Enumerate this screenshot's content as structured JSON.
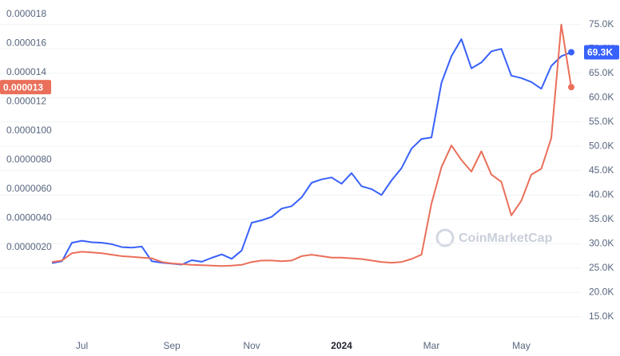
{
  "chart_data": {
    "type": "line",
    "watermark": "CoinMarketCap",
    "categories": [
      null,
      null,
      null,
      "Jul",
      null,
      null,
      null,
      null,
      null,
      null,
      null,
      null,
      "Sep",
      null,
      null,
      null,
      null,
      null,
      null,
      null,
      "Nov",
      null,
      null,
      null,
      null,
      null,
      null,
      null,
      null,
      "2024",
      null,
      null,
      null,
      null,
      null,
      null,
      null,
      null,
      "Mar",
      null,
      null,
      null,
      null,
      null,
      null,
      null,
      null,
      "May",
      null,
      null,
      null,
      null,
      null
    ],
    "series": [
      {
        "color": "#3861fb",
        "axis": "y2",
        "values": [
          26000,
          26400,
          30200,
          30600,
          30300,
          30200,
          29900,
          29300,
          29200,
          29400,
          26400,
          26100,
          25900,
          25700,
          26600,
          26300,
          27100,
          27800,
          26900,
          28600,
          34300,
          34800,
          35500,
          37200,
          37700,
          39500,
          42500,
          43200,
          43600,
          42300,
          44500,
          41800,
          41200,
          40000,
          43000,
          45500,
          49500,
          51500,
          51800,
          63000,
          68500,
          72000,
          66000,
          67200,
          69500,
          70000,
          64500,
          64000,
          63200,
          61800,
          66500,
          68500,
          69300
        ],
        "value_labels": [
          null,
          null,
          null,
          null,
          null,
          null,
          null,
          null,
          null,
          null,
          null,
          null,
          null,
          null,
          null,
          null,
          null,
          null,
          null,
          null,
          null,
          null,
          null,
          null,
          null,
          null,
          null,
          null,
          null,
          null,
          null,
          null,
          null,
          null,
          null,
          null,
          null,
          null,
          null,
          null,
          null,
          null,
          null,
          null,
          null,
          null,
          null,
          null,
          null,
          null,
          null,
          null,
          "69.3K"
        ]
      },
      {
        "color": "#ea6f5a",
        "axis": "y",
        "values": [
          1e-06,
          1.1e-06,
          1.6e-06,
          1.7e-06,
          1.65e-06,
          1.6e-06,
          1.5e-06,
          1.4e-06,
          1.35e-06,
          1.3e-06,
          1.25e-06,
          1e-06,
          9e-07,
          8.5e-07,
          8e-07,
          7.8e-07,
          7.5e-07,
          7.2e-07,
          7.5e-07,
          8e-07,
          1e-06,
          1.1e-06,
          1.1e-06,
          1.05e-06,
          1.1e-06,
          1.4e-06,
          1.5e-06,
          1.4e-06,
          1.3e-06,
          1.3e-06,
          1.25e-06,
          1.2e-06,
          1.1e-06,
          1e-06,
          9.5e-07,
          1e-06,
          1.2e-06,
          1.5e-06,
          5e-06,
          7.5e-06,
          9e-06,
          8e-06,
          7.2e-06,
          8.6e-06,
          7e-06,
          6.5e-06,
          4.2e-06,
          5.2e-06,
          7e-06,
          7.4e-06,
          9.5e-06,
          1.73e-05,
          1.3e-05
        ]
      }
    ],
    "ylim": [
      -4.03e-06,
      1.827e-05
    ],
    "yticks": [
      {
        "value": 2e-06,
        "label": "0.0000020"
      },
      {
        "value": 4e-06,
        "label": "0.0000040"
      },
      {
        "value": 6e-06,
        "label": "0.0000060"
      },
      {
        "value": 8e-06,
        "label": "0.0000080"
      },
      {
        "value": 1e-05,
        "label": "0.0000100"
      },
      1.2e-05,
      1.4e-05,
      1.6e-05,
      1.8e-05
    ],
    "y2lim": [
      11200,
      77900
    ],
    "y2ticks": [
      {
        "value": 15000,
        "label": "15.0K"
      },
      {
        "value": 20000,
        "label": "20.0K"
      },
      {
        "value": 25000,
        "label": "25.0K"
      },
      {
        "value": 30000,
        "label": "30.0K"
      },
      {
        "value": 35000,
        "label": "35.0K"
      },
      {
        "value": 40000,
        "label": "40.0K"
      },
      {
        "value": 45000,
        "label": "45.0K"
      },
      {
        "value": 50000,
        "label": "50.0K"
      },
      {
        "value": 55000,
        "label": "55.0K"
      },
      {
        "value": 60000,
        "label": "60.0K"
      },
      {
        "value": 65000,
        "label": "65.0K"
      },
      {
        "value": 70000,
        "label": "70.0K"
      },
      {
        "value": 75000,
        "label": "75.0K"
      }
    ],
    "grid": true
  }
}
